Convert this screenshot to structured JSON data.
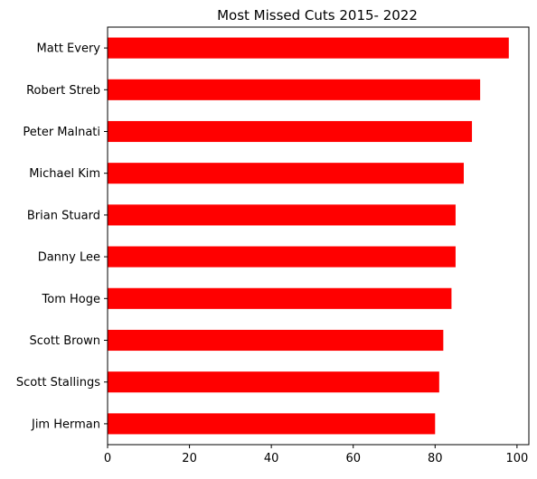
{
  "chart_data": {
    "type": "bar",
    "orientation": "horizontal",
    "title": "Most Missed Cuts 2015- 2022",
    "xlabel": "",
    "ylabel": "",
    "categories": [
      "Jim Herman",
      "Scott Stallings",
      "Scott Brown",
      "Tom Hoge",
      "Danny Lee",
      "Brian Stuard",
      "Michael Kim",
      "Peter Malnati",
      "Robert Streb",
      "Matt Every"
    ],
    "values": [
      80,
      81,
      82,
      84,
      85,
      85,
      87,
      89,
      91,
      98
    ],
    "xlim": [
      0,
      102.9
    ],
    "x_ticks": [
      0,
      20,
      40,
      60,
      80,
      100
    ],
    "bar_color": "#ff0000",
    "grid": false,
    "legend": "none"
  }
}
